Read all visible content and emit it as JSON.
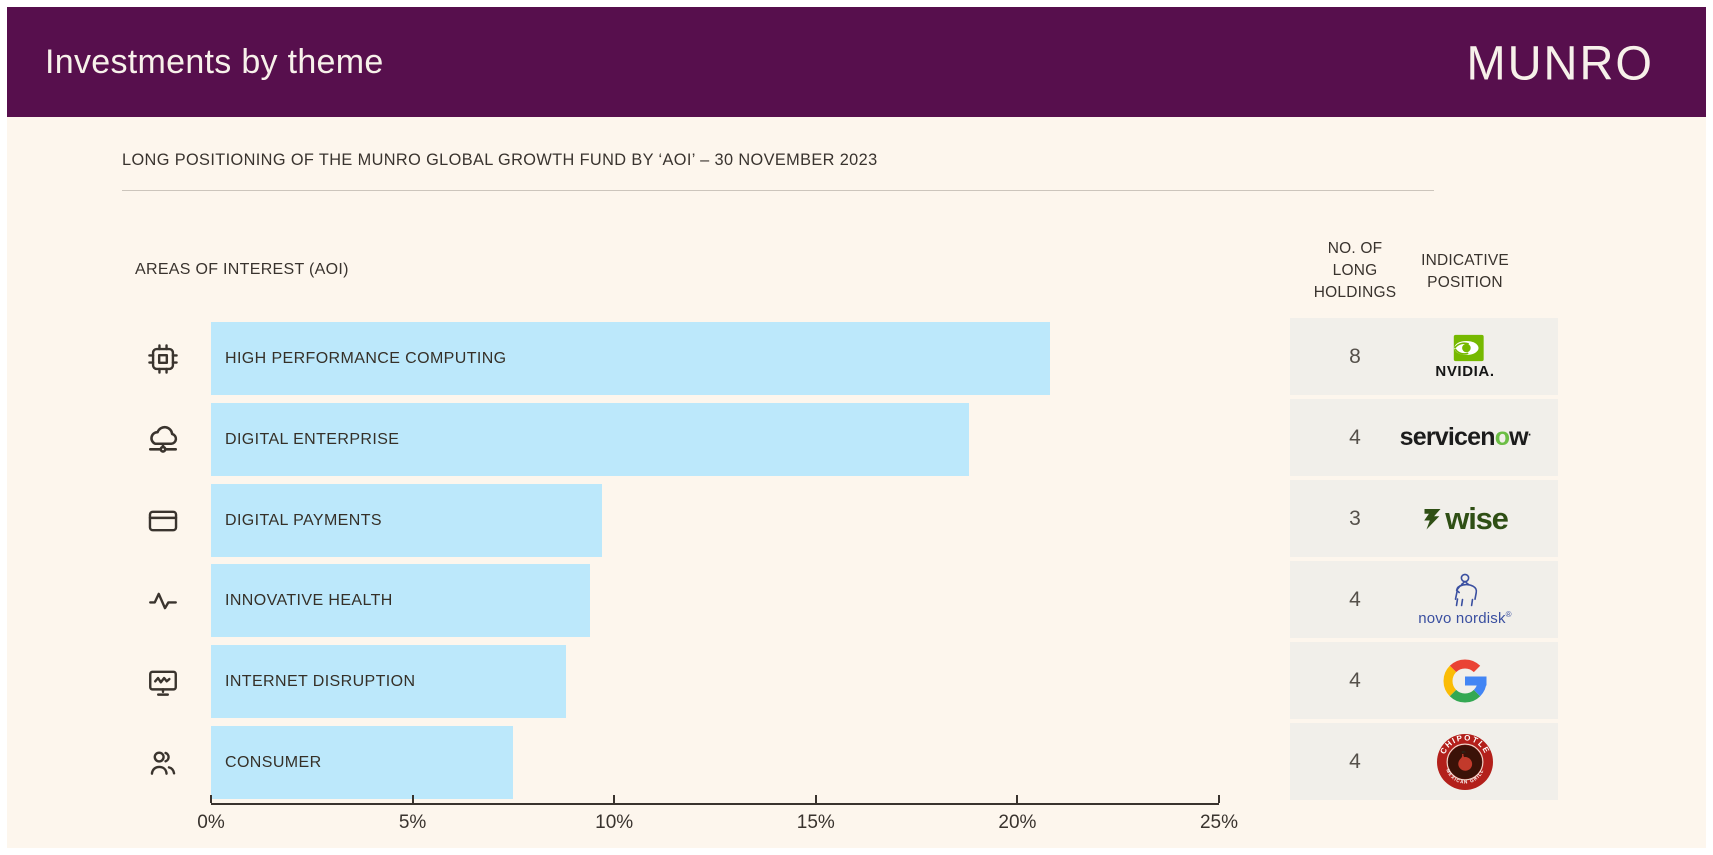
{
  "colors": {
    "header_bg": "#570F4D",
    "panel_bg": "#FDF6ED",
    "bar_fill": "#BCE8FB",
    "table_row_bg": "#F1EFEA",
    "text_dark": "#39332E",
    "nvidia_green": "#76B900",
    "servicenow_green": "#6CBE45",
    "wise_green": "#2F4F15",
    "novo_blue": "#3A4FA0"
  },
  "header": {
    "title": "Investments by theme",
    "brand": "MUNRO"
  },
  "subtitle": "LONG POSITIONING OF THE MUNRO GLOBAL GROWTH FUND BY ‘AOI’ – 30 NOVEMBER 2023",
  "chart_data": {
    "type": "bar",
    "orientation": "horizontal",
    "title": "AREAS OF INTEREST (AOI)",
    "categories": [
      "HIGH PERFORMANCE COMPUTING",
      "DIGITAL ENTERPRISE",
      "DIGITAL PAYMENTS",
      "INNOVATIVE HEALTH",
      "INTERNET DISRUPTION",
      "CONSUMER"
    ],
    "values": [
      20.8,
      18.8,
      9.7,
      9.4,
      8.8,
      7.5
    ],
    "unit": "%",
    "xlim": [
      0,
      25
    ],
    "xtick_labels": [
      "0%",
      "5%",
      "10%",
      "15%",
      "20%",
      "25%"
    ],
    "category_icons": [
      "cpu-chip-icon",
      "cloud-network-icon",
      "credit-card-icon",
      "pulse-icon",
      "monitor-wave-icon",
      "people-icon"
    ],
    "grid": false,
    "legend": false
  },
  "table": {
    "headers": [
      "NO. OF\nLONG\nHOLDINGS",
      "INDICATIVE\nPOSITION"
    ],
    "rows": [
      {
        "holdings": "8",
        "company": "NVIDIA"
      },
      {
        "holdings": "4",
        "company": "servicenow"
      },
      {
        "holdings": "3",
        "company": "Wise"
      },
      {
        "holdings": "4",
        "company": "Novo Nordisk"
      },
      {
        "holdings": "4",
        "company": "Google"
      },
      {
        "holdings": "4",
        "company": "Chipotle Mexican Grill"
      }
    ]
  },
  "logos": {
    "nvidia": {
      "wordmark": "NVIDIA."
    },
    "servicenow": {
      "pre": "servicen",
      "o": "o",
      "post": "w",
      "reg": "."
    },
    "wise": {
      "wordmark": "wise"
    },
    "novo": {
      "wordmark": "novo nordisk",
      "reg": "®"
    },
    "chipotle": {
      "top": "CHIPOTLE",
      "bottom": "MEXICAN GRILL"
    }
  }
}
